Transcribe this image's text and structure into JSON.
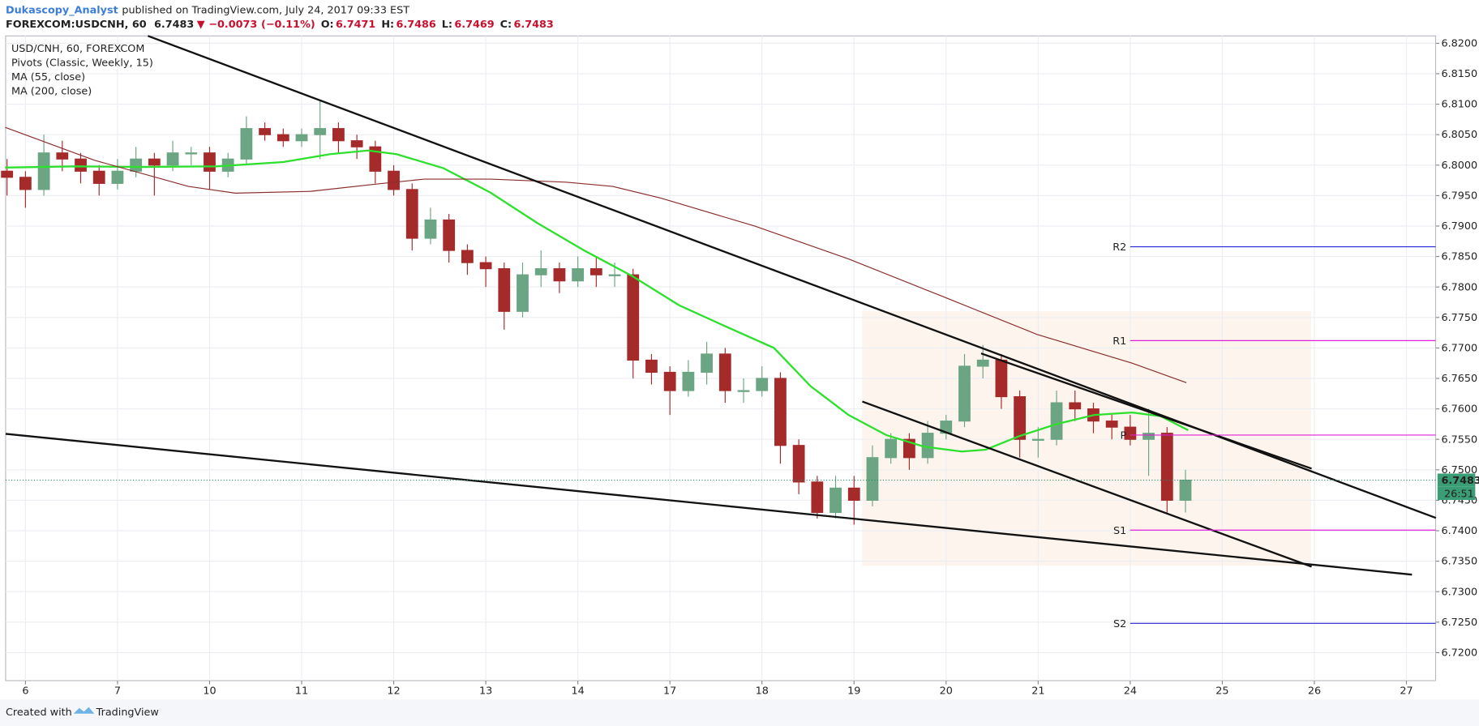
{
  "header": {
    "author": "Dukascopy_Analyst",
    "published": "published on TradingView.com, July 24, 2017 09:33 EST"
  },
  "quote": {
    "symbol": "FOREXCOM:USDCNH, 60",
    "last": 6.7483,
    "arrow": "▼",
    "change": {
      "value": -0.0073,
      "label": "−0.0073"
    },
    "change_pct": {
      "value": -0.11,
      "label": "(−0.11%)"
    },
    "open_label": "O:",
    "open": 6.7471,
    "high_label": "H:",
    "high": 6.7486,
    "low_label": "L:",
    "low": 6.7469,
    "close_label": "C:",
    "close": 6.7483
  },
  "footer": {
    "created": "Created with",
    "brand": "TradingView"
  },
  "chart_data": {
    "type": "candlestick",
    "title": "USD/CNH, 60, FOREXCOM",
    "indicator": "Pivots (Classic, Weekly, 15)",
    "up_color": "#6ba583",
    "down_color": "#a52a2a",
    "grid": true,
    "xlim": [
      -0.215,
      15.317
    ],
    "xticks": [
      {
        "value": 0,
        "label": "6"
      },
      {
        "value": 1,
        "label": "7"
      },
      {
        "value": 2,
        "label": "10"
      },
      {
        "value": 3,
        "label": "11"
      },
      {
        "value": 4,
        "label": "12"
      },
      {
        "value": 5,
        "label": "13"
      },
      {
        "value": 6,
        "label": "14"
      },
      {
        "value": 7,
        "label": "17"
      },
      {
        "value": 8,
        "label": "18"
      },
      {
        "value": 9,
        "label": "19"
      },
      {
        "value": 10,
        "label": "20"
      },
      {
        "value": 11,
        "label": "21"
      },
      {
        "value": 12,
        "label": "24"
      },
      {
        "value": 13,
        "label": "25"
      },
      {
        "value": 14,
        "label": "26"
      },
      {
        "value": 15,
        "label": "27"
      }
    ],
    "ylim": [
      6.7154,
      6.8212
    ],
    "yticks": [
      {
        "value": 6.72,
        "label": "6.7200"
      },
      {
        "value": 6.725,
        "label": "6.7250"
      },
      {
        "value": 6.73,
        "label": "6.7300"
      },
      {
        "value": 6.735,
        "label": "6.7350"
      },
      {
        "value": 6.74,
        "label": "6.7400"
      },
      {
        "value": 6.745,
        "label": "6.7450"
      },
      {
        "value": 6.75,
        "label": "6.7500"
      },
      {
        "value": 6.755,
        "label": "6.7550"
      },
      {
        "value": 6.76,
        "label": "6.7600"
      },
      {
        "value": 6.765,
        "label": "6.7650"
      },
      {
        "value": 6.77,
        "label": "6.7700"
      },
      {
        "value": 6.775,
        "label": "6.7750"
      },
      {
        "value": 6.78,
        "label": "6.7800"
      },
      {
        "value": 6.785,
        "label": "6.7850"
      },
      {
        "value": 6.79,
        "label": "6.7900"
      },
      {
        "value": 6.795,
        "label": "6.7950"
      },
      {
        "value": 6.8,
        "label": "6.8000"
      },
      {
        "value": 6.805,
        "label": "6.8050"
      },
      {
        "value": 6.81,
        "label": "6.8100"
      },
      {
        "value": 6.815,
        "label": "6.8150"
      },
      {
        "value": 6.82,
        "label": "6.8200"
      }
    ],
    "x": [
      -0.2,
      0,
      0.2,
      0.4,
      0.6,
      0.8,
      1,
      1.2,
      1.4,
      1.6,
      1.8,
      2,
      2.2,
      2.4,
      2.6,
      2.8,
      3,
      3.2,
      3.4,
      3.6,
      3.8,
      4,
      4.2,
      4.4,
      4.6,
      4.8,
      5,
      5.2,
      5.4,
      5.6,
      5.8,
      6,
      6.2,
      6.4,
      6.6,
      6.8,
      7,
      7.2,
      7.4,
      7.6,
      7.8,
      8,
      8.2,
      8.4,
      8.6,
      8.8,
      9,
      9.2,
      9.4,
      9.6,
      9.8,
      10,
      10.2,
      10.4,
      10.6,
      10.8,
      11,
      11.2,
      11.4,
      11.6,
      11.8,
      12,
      12.2,
      12.4,
      12.6
    ],
    "open": [
      6.799,
      6.798,
      6.796,
      6.802,
      6.801,
      6.799,
      6.797,
      6.799,
      6.801,
      6.8,
      6.802,
      6.802,
      6.799,
      6.801,
      6.806,
      6.805,
      6.804,
      6.805,
      6.806,
      6.804,
      6.803,
      6.799,
      6.796,
      6.788,
      6.791,
      6.786,
      6.784,
      6.783,
      6.776,
      6.782,
      6.783,
      6.781,
      6.783,
      6.782,
      6.782,
      6.768,
      6.766,
      6.763,
      6.766,
      6.769,
      6.763,
      6.763,
      6.765,
      6.754,
      6.748,
      6.743,
      6.747,
      6.745,
      6.752,
      6.755,
      6.752,
      6.756,
      6.758,
      6.767,
      6.768,
      6.762,
      6.755,
      6.755,
      6.761,
      6.76,
      6.758,
      6.757,
      6.755,
      6.756,
      6.745
    ],
    "high": [
      6.801,
      6.799,
      6.805,
      6.804,
      6.802,
      6.8,
      6.801,
      6.803,
      6.802,
      6.804,
      6.803,
      6.803,
      6.802,
      6.808,
      6.807,
      6.806,
      6.806,
      6.8105,
      6.807,
      6.805,
      6.804,
      6.8,
      6.797,
      6.793,
      6.792,
      6.787,
      6.785,
      6.784,
      6.784,
      6.786,
      6.784,
      6.785,
      6.785,
      6.784,
      6.783,
      6.769,
      6.767,
      6.768,
      6.771,
      6.77,
      6.765,
      6.767,
      6.766,
      6.755,
      6.749,
      6.749,
      6.749,
      6.754,
      6.756,
      6.756,
      6.758,
      6.759,
      6.769,
      6.7705,
      6.769,
      6.763,
      6.757,
      6.763,
      6.763,
      6.761,
      6.759,
      6.759,
      6.76,
      6.757,
      6.75
    ],
    "low": [
      6.795,
      6.793,
      6.795,
      6.799,
      6.797,
      6.795,
      6.796,
      6.798,
      6.795,
      6.799,
      6.8,
      6.796,
      6.798,
      6.8,
      6.804,
      6.803,
      6.803,
      6.801,
      6.802,
      6.801,
      6.797,
      6.795,
      6.786,
      6.787,
      6.784,
      6.782,
      6.78,
      6.773,
      6.775,
      6.78,
      6.779,
      6.78,
      6.78,
      6.78,
      6.765,
      6.764,
      6.759,
      6.762,
      6.764,
      6.761,
      6.761,
      6.762,
      6.751,
      6.746,
      6.742,
      6.742,
      6.741,
      6.744,
      6.751,
      6.75,
      6.751,
      6.755,
      6.757,
      6.765,
      6.76,
      6.752,
      6.752,
      6.754,
      6.758,
      6.756,
      6.755,
      6.754,
      6.749,
      6.743,
      6.743
    ],
    "close": [
      6.798,
      6.796,
      6.802,
      6.801,
      6.799,
      6.797,
      6.799,
      6.801,
      6.8,
      6.802,
      6.802,
      6.799,
      6.801,
      6.806,
      6.805,
      6.804,
      6.805,
      6.806,
      6.804,
      6.803,
      6.799,
      6.796,
      6.788,
      6.791,
      6.786,
      6.784,
      6.783,
      6.776,
      6.782,
      6.783,
      6.781,
      6.783,
      6.782,
      6.782,
      6.768,
      6.766,
      6.763,
      6.766,
      6.769,
      6.763,
      6.763,
      6.765,
      6.754,
      6.748,
      6.743,
      6.747,
      6.745,
      6.752,
      6.755,
      6.752,
      6.756,
      6.758,
      6.767,
      6.768,
      6.762,
      6.755,
      6.755,
      6.761,
      6.76,
      6.758,
      6.757,
      6.755,
      6.756,
      6.745,
      6.7483
    ],
    "series": [
      {
        "name": "MA (55, close)",
        "color": "#2ee02e",
        "x": [
          -0.22,
          0.54,
          1.26,
          2.08,
          2.8,
          3.31,
          3.72,
          4.03,
          4.54,
          5.05,
          5.56,
          6.08,
          6.59,
          7.1,
          7.61,
          8.13,
          8.53,
          8.94,
          9.35,
          9.76,
          10.17,
          10.43,
          10.79,
          11.2,
          11.61,
          12.02,
          12.33,
          12.63
        ],
        "values": [
          6.7996,
          6.7998,
          6.7997,
          6.7998,
          6.8005,
          6.8018,
          6.8024,
          6.8018,
          6.7995,
          6.7955,
          6.7905,
          6.7859,
          6.7818,
          6.777,
          6.7735,
          6.77,
          6.7637,
          6.759,
          6.7557,
          6.7538,
          6.753,
          6.7533,
          6.7555,
          6.7575,
          6.759,
          6.7594,
          6.7588,
          6.7565
        ]
      },
      {
        "name": "MA (200, close)",
        "color": "#8b2c2c",
        "x": [
          -0.22,
          0.75,
          1.77,
          2.28,
          3.1,
          3.82,
          4.33,
          5.05,
          5.87,
          6.38,
          6.9,
          7.92,
          8.94,
          9.97,
          10.99,
          12.02,
          12.61
        ],
        "values": [
          6.8062,
          6.8008,
          6.7965,
          6.7954,
          6.7957,
          6.7969,
          6.7977,
          6.7977,
          6.7972,
          6.7965,
          6.7946,
          6.79,
          6.7846,
          6.7784,
          6.7722,
          6.7675,
          6.7643
        ]
      }
    ],
    "trendlines": [
      {
        "x": [
          1.33,
          15.32
        ],
        "y": [
          6.8212,
          6.7421
        ]
      },
      {
        "x": [
          -0.215,
          15.06
        ],
        "y": [
          6.7559,
          6.7328
        ]
      },
      {
        "x": [
          9.09,
          13.97
        ],
        "y": [
          6.7612,
          6.7341
        ]
      },
      {
        "x": [
          10.38,
          13.97
        ],
        "y": [
          6.7691,
          6.7502
        ]
      }
    ],
    "pivots": [
      {
        "label": "R2",
        "value": 6.7866,
        "color": "#2424d8"
      },
      {
        "label": "R1",
        "value": 6.7712,
        "color": "#e020d8"
      },
      {
        "label": "P",
        "value": 6.7557,
        "color": "#e020d8"
      },
      {
        "label": "S1",
        "value": 6.7401,
        "color": "#e020d8"
      },
      {
        "label": "S2",
        "value": 6.7248,
        "color": "#2424d8"
      }
    ],
    "pivot_start_tick": 12,
    "last_price": 6.7483,
    "countdown": "26:51"
  }
}
